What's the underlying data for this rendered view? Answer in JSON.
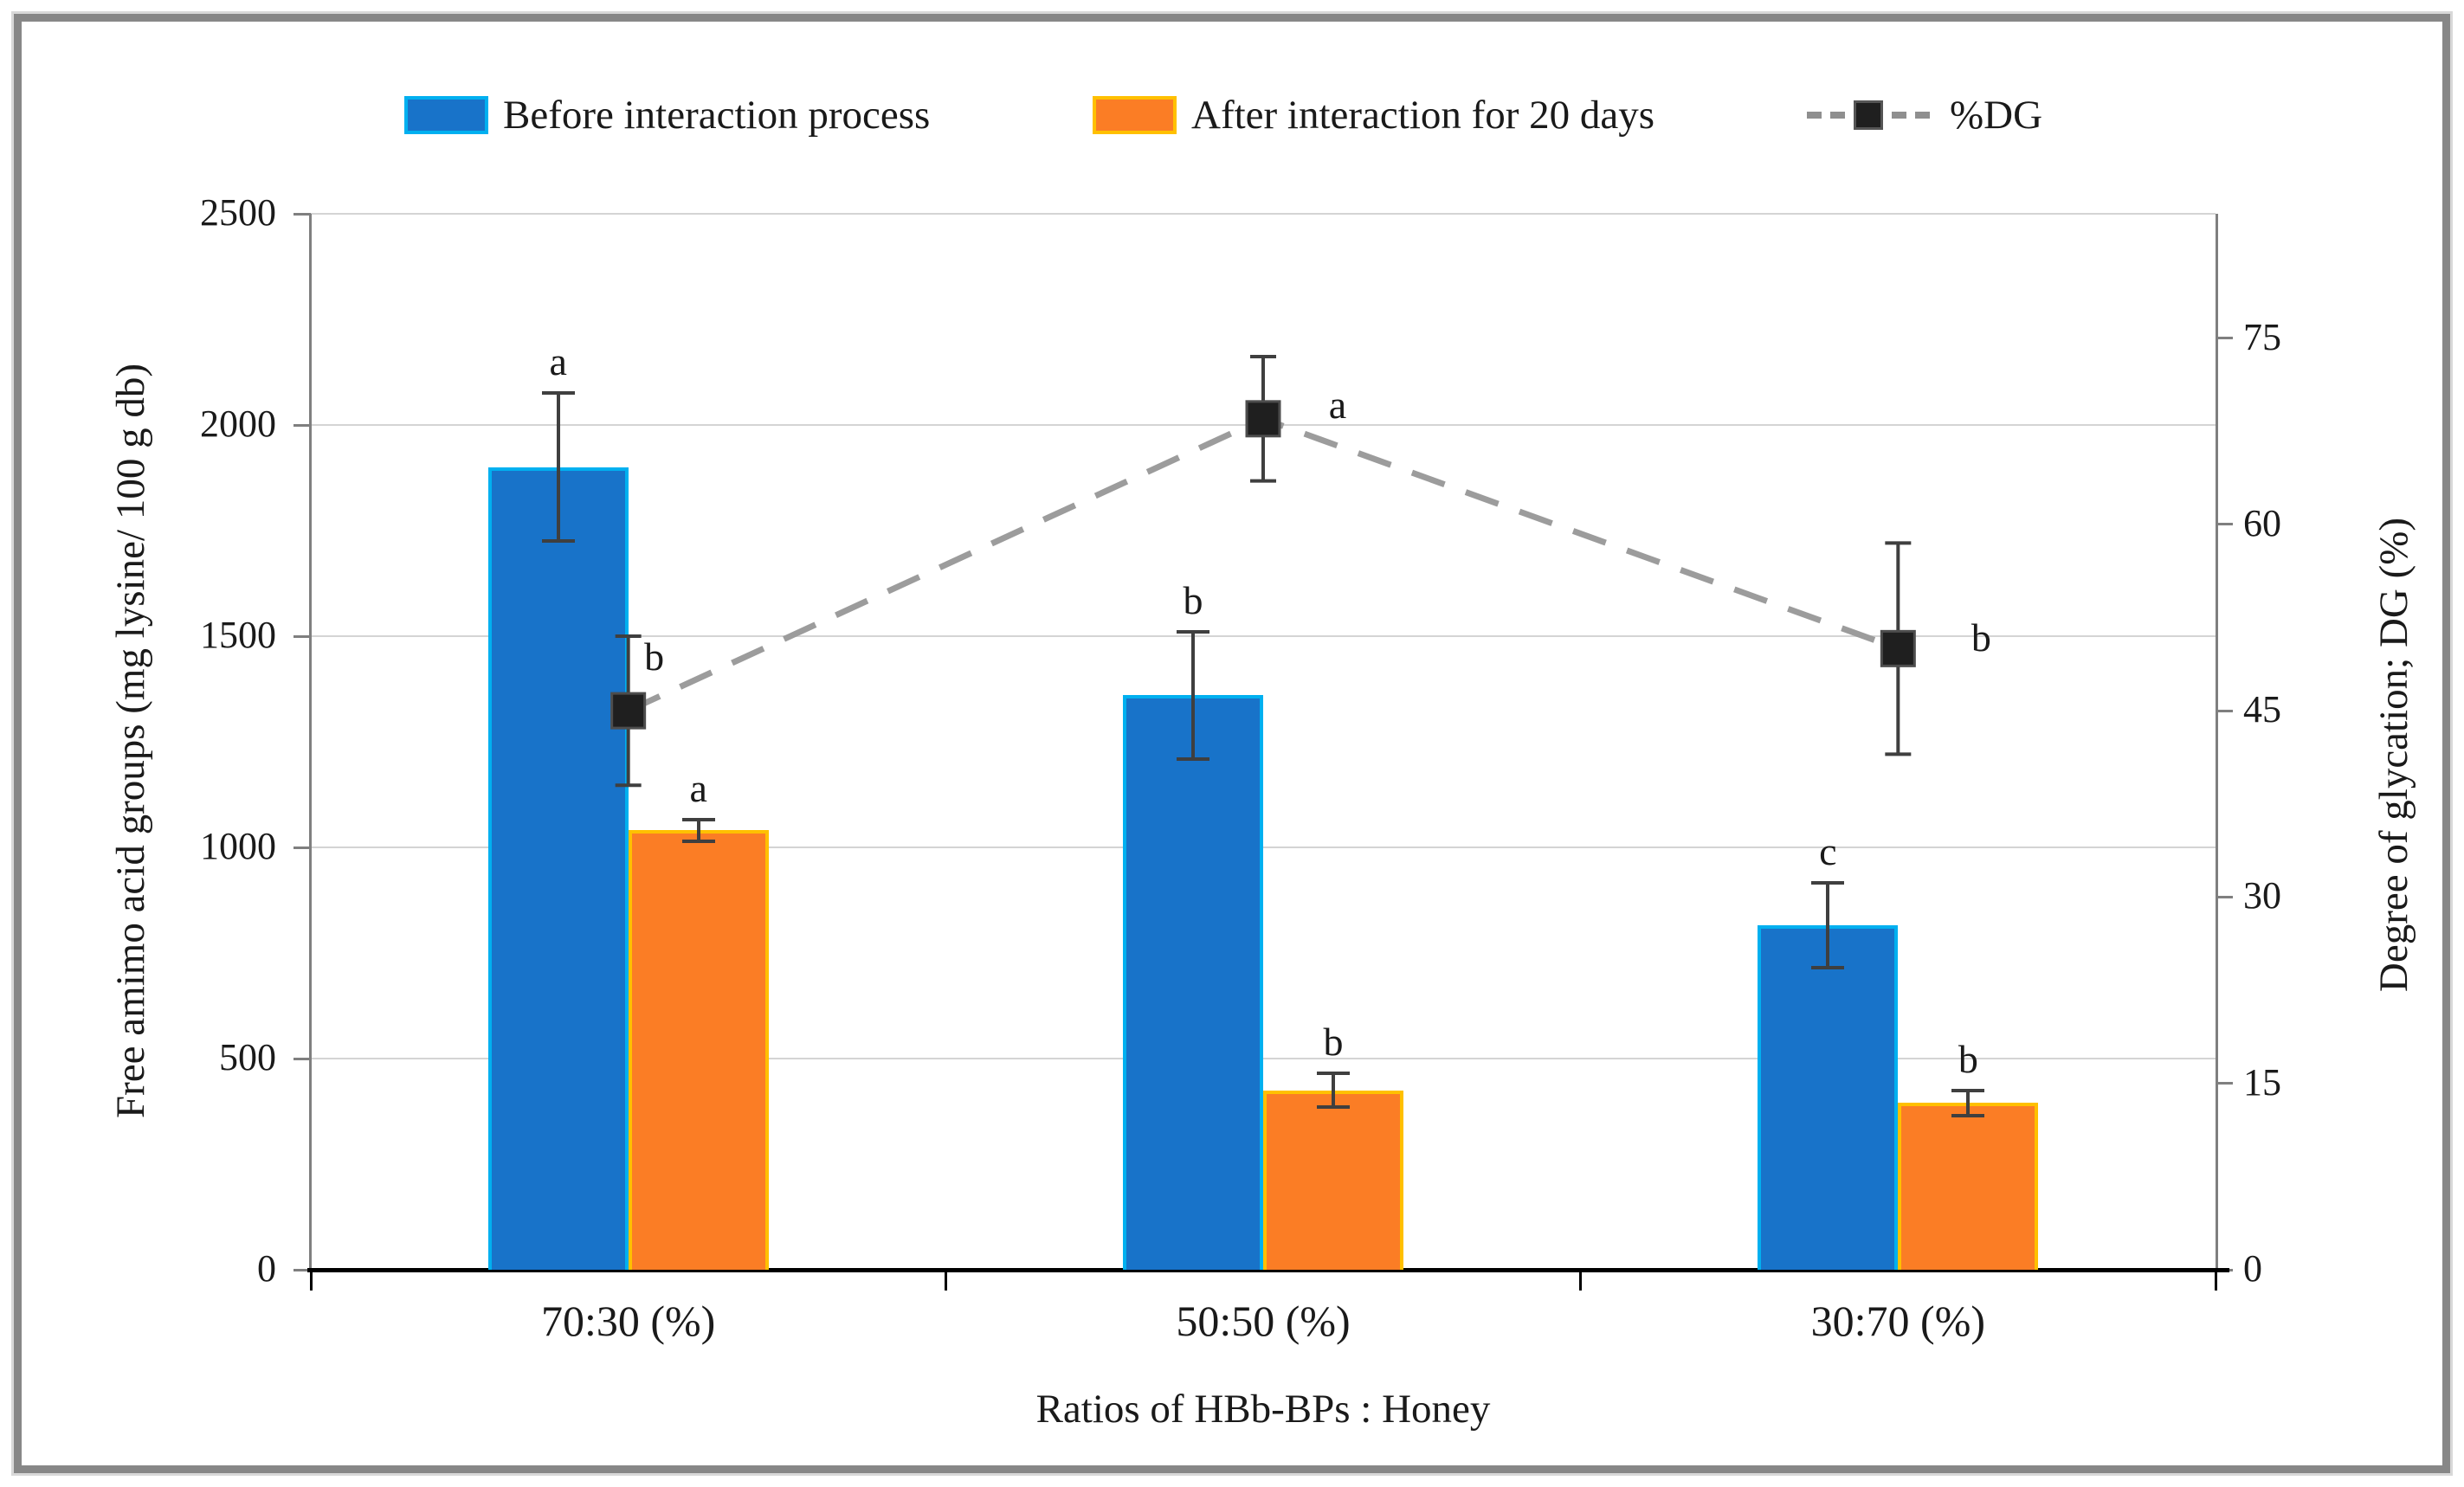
{
  "figure": {
    "description": "Grouped bar chart with secondary dashed line series (%DG)",
    "x_axis_title": "Ratios of HBb-BPs : Honey",
    "left_axis_title": "Free amimo acid groups (mg lysine/ 100 g db)",
    "right_axis_title": "Degree of glycation; DG (%)"
  },
  "legend": {
    "items": [
      {
        "label": "Before interaction process"
      },
      {
        "label": "After interaction for 20 days"
      },
      {
        "label": "%DG"
      }
    ]
  },
  "colors": {
    "bar1_fill": "#1873C9",
    "bar1_border": "#00B0F0",
    "bar2_fill": "#FB7D25",
    "bar2_border": "#FFC000",
    "dg_line": "#9C9C9C",
    "dg_marker": "#1F1F1F",
    "error_bar": "#3f3f3f",
    "gridline": "#d4d4d4",
    "axis": "#7f7f7f",
    "frame_border": "#878787"
  },
  "chart_data": {
    "type": "bar",
    "categories": [
      "70:30 (%)",
      "50:50 (%)",
      "30:70 (%)"
    ],
    "series": [
      {
        "name": "Before interaction process",
        "type": "bar",
        "axis": "left",
        "values": [
          1900,
          1360,
          815
        ],
        "error_bars": [
          175,
          150,
          100
        ],
        "point_labels": [
          "a",
          "b",
          "c"
        ],
        "fill": "#1873C9",
        "border": "#00B0F0"
      },
      {
        "name": "After interaction for 20 days",
        "type": "bar",
        "axis": "left",
        "values": [
          1040,
          425,
          395
        ],
        "error_bars": [
          25,
          40,
          30
        ],
        "point_labels": [
          "a",
          "b",
          "b"
        ],
        "fill": "#FB7D25",
        "border": "#FFC000"
      },
      {
        "name": "%DG",
        "type": "line",
        "axis": "right",
        "values": [
          45,
          68.5,
          50
        ],
        "error_bars": [
          6,
          5,
          8.5
        ],
        "point_labels": [
          "b",
          "a",
          "b"
        ],
        "line_color": "#9C9C9C",
        "marker_color": "#1F1F1F"
      }
    ],
    "left_axis": {
      "title": "Free amimo acid groups (mg lysine/ 100 g db)",
      "min": 0,
      "max": 2500,
      "ticks": [
        0,
        500,
        1000,
        1500,
        2000,
        2500
      ]
    },
    "right_axis": {
      "title": "Degree of glycation; DG (%)",
      "min": 0,
      "max": 85,
      "ticks": [
        0,
        15,
        30,
        45,
        60,
        75
      ]
    },
    "x_axis": {
      "title": "Ratios of HBb-BPs : Honey"
    },
    "grid": true,
    "legend_position": "top"
  }
}
